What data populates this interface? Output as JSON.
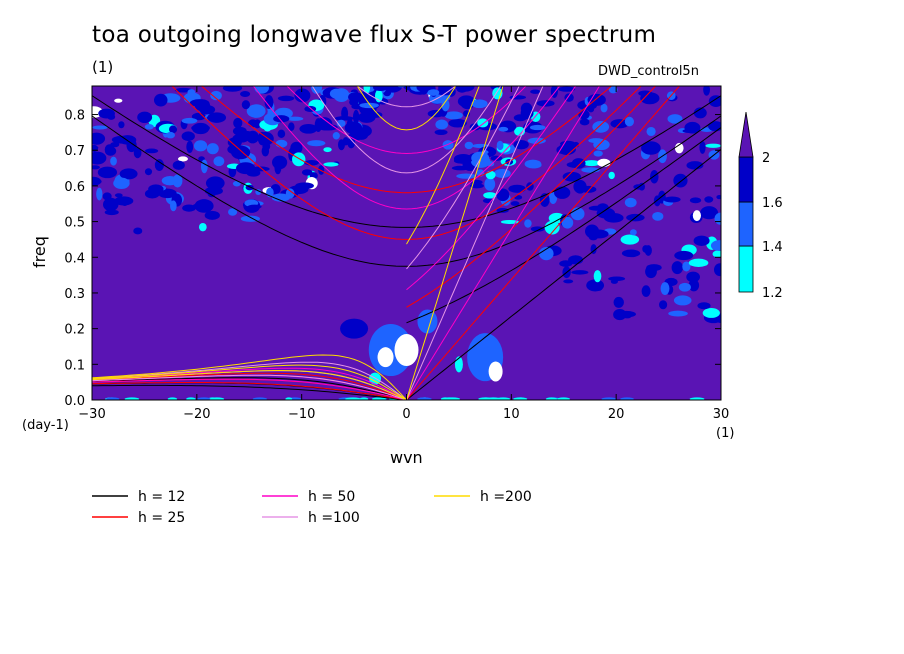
{
  "chart_data": {
    "type": "heatmap",
    "title": "toa outgoing longwave flux S-T power spectrum",
    "units": "(1)",
    "experiment": "DWD_control5n",
    "xlabel": "wvn",
    "ylabel": "freq",
    "x_unit_label": "(1)",
    "y_unit_label": "(day-1)",
    "xlim": [
      -30,
      30
    ],
    "ylim": [
      0.0,
      0.88
    ],
    "x_ticks": [
      -30,
      -20,
      -10,
      0,
      10,
      20,
      30
    ],
    "y_ticks": [
      0.0,
      0.1,
      0.2,
      0.3,
      0.4,
      0.5,
      0.6,
      0.7,
      0.8
    ],
    "colorbar": {
      "levels": [
        1.2,
        1.4,
        1.6,
        2
      ],
      "colors": [
        "#ffffff",
        "#00ffff",
        "#1e64ff",
        "#0000c8",
        "#5a14b4"
      ]
    },
    "dispersion_curves": [
      {
        "name": "h = 12",
        "h": 12,
        "color": "#000000"
      },
      {
        "name": "h = 25",
        "h": 25,
        "color": "#ff0000"
      },
      {
        "name": "h = 50",
        "h": 50,
        "color": "#ff00c8"
      },
      {
        "name": "h =100",
        "h": 100,
        "color": "#e696e6"
      },
      {
        "name": "h =200",
        "h": 200,
        "color": "#ffdc00"
      }
    ],
    "legend_placement": "bottom"
  }
}
